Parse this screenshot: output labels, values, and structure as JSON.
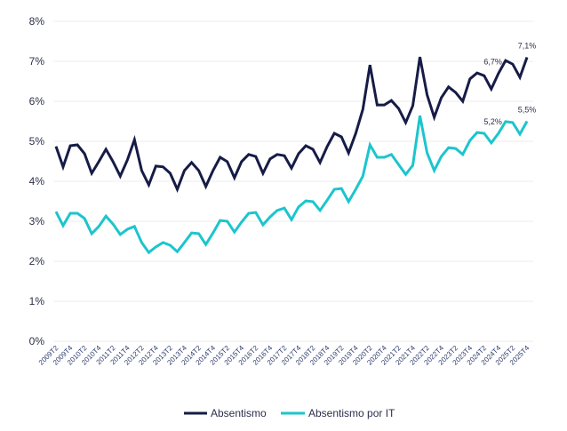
{
  "chart_data": {
    "type": "line",
    "title": "",
    "xlabel": "",
    "ylabel": "",
    "ylim": [
      0,
      8
    ],
    "yticks": [
      "0%",
      "1%",
      "2%",
      "3%",
      "4%",
      "5%",
      "6%",
      "7%",
      "8%"
    ],
    "grid": "horizontal",
    "legend_placement": "bottom",
    "categories": [
      "2009T2",
      "2009T3",
      "2009T4",
      "2010T1",
      "2010T2",
      "2010T3",
      "2010T4",
      "2011T1",
      "2011T2",
      "2011T3",
      "2011T4",
      "2012T1",
      "2012T2",
      "2012T3",
      "2012T4",
      "2013T1",
      "2013T2",
      "2013T3",
      "2013T4",
      "2014T1",
      "2014T2",
      "2014T3",
      "2014T4",
      "2015T1",
      "2015T2",
      "2015T3",
      "2015T4",
      "2016T1",
      "2016T2",
      "2016T3",
      "2016T4",
      "2017T1",
      "2017T2",
      "2017T3",
      "2017T4",
      "2018T1",
      "2018T2",
      "2018T3",
      "2018T4",
      "2019T1",
      "2019T2",
      "2019T3",
      "2019T4",
      "2020T1",
      "2020T2",
      "2020T3",
      "2020T4",
      "2021T1",
      "2021T2",
      "2021T3",
      "2021T4",
      "2022T1",
      "2022T2",
      "2022T3",
      "2022T4",
      "2023T1",
      "2023T2",
      "2023T3",
      "2023T4",
      "2024T1",
      "2024T2",
      "2024T3",
      "2024T4",
      "2025T1",
      "2025T2",
      "2025T3",
      "2025T4"
    ],
    "xtick_labels": [
      "2009T2",
      "2009T4",
      "2010T2",
      "2010T4",
      "2011T2",
      "2011T4",
      "2012T2",
      "2012T4",
      "2013T2",
      "2013T4",
      "2014T2",
      "2014T4",
      "2015T2",
      "2015T4",
      "2016T2",
      "2016T4",
      "2017T2",
      "2017T4",
      "2018T2",
      "2018T4",
      "2019T2",
      "2019T4",
      "2020T2",
      "2020T4",
      "2021T2",
      "2021T4",
      "2022T2",
      "2022T4",
      "2023T2",
      "2023T4",
      "2024T2",
      "2024T4",
      "2025T2",
      "2025T4"
    ],
    "series": [
      {
        "name": "Absentismo",
        "color": "#161c46",
        "values": [
          4.87,
          4.36,
          4.89,
          4.91,
          4.69,
          4.2,
          4.49,
          4.8,
          4.49,
          4.13,
          4.53,
          5.04,
          4.27,
          3.91,
          4.38,
          4.36,
          4.2,
          3.8,
          4.27,
          4.47,
          4.27,
          3.87,
          4.27,
          4.6,
          4.49,
          4.09,
          4.49,
          4.67,
          4.62,
          4.2,
          4.56,
          4.67,
          4.64,
          4.33,
          4.69,
          4.89,
          4.8,
          4.47,
          4.87,
          5.2,
          5.11,
          4.71,
          5.2,
          5.8,
          6.91,
          5.91,
          5.91,
          6.02,
          5.82,
          5.47,
          5.89,
          7.11,
          6.16,
          5.6,
          6.09,
          6.36,
          6.22,
          6.0,
          6.56,
          6.71,
          6.64,
          6.31,
          6.7,
          7.02,
          6.93,
          6.6,
          7.1
        ]
      },
      {
        "name": "Absentismo por IT",
        "color": "#1cc5cd",
        "values": [
          3.24,
          2.89,
          3.2,
          3.2,
          3.07,
          2.69,
          2.87,
          3.13,
          2.93,
          2.67,
          2.8,
          2.87,
          2.47,
          2.22,
          2.36,
          2.47,
          2.4,
          2.24,
          2.47,
          2.71,
          2.69,
          2.42,
          2.71,
          3.02,
          3.0,
          2.73,
          2.98,
          3.2,
          3.22,
          2.91,
          3.11,
          3.27,
          3.33,
          3.04,
          3.36,
          3.51,
          3.49,
          3.27,
          3.53,
          3.8,
          3.82,
          3.49,
          3.8,
          4.13,
          4.91,
          4.6,
          4.6,
          4.67,
          4.42,
          4.17,
          4.4,
          5.64,
          4.71,
          4.27,
          4.62,
          4.84,
          4.82,
          4.67,
          5.02,
          5.22,
          5.2,
          4.96,
          5.2,
          5.49,
          5.47,
          5.18,
          5.5
        ]
      }
    ],
    "annotations": [
      {
        "series": 0,
        "category": "2024T4",
        "text": "6,7%"
      },
      {
        "series": 0,
        "category": "2025T4",
        "text": "7,1%"
      },
      {
        "series": 1,
        "category": "2024T4",
        "text": "5,2%"
      },
      {
        "series": 1,
        "category": "2025T4",
        "text": "5,5%"
      }
    ]
  }
}
